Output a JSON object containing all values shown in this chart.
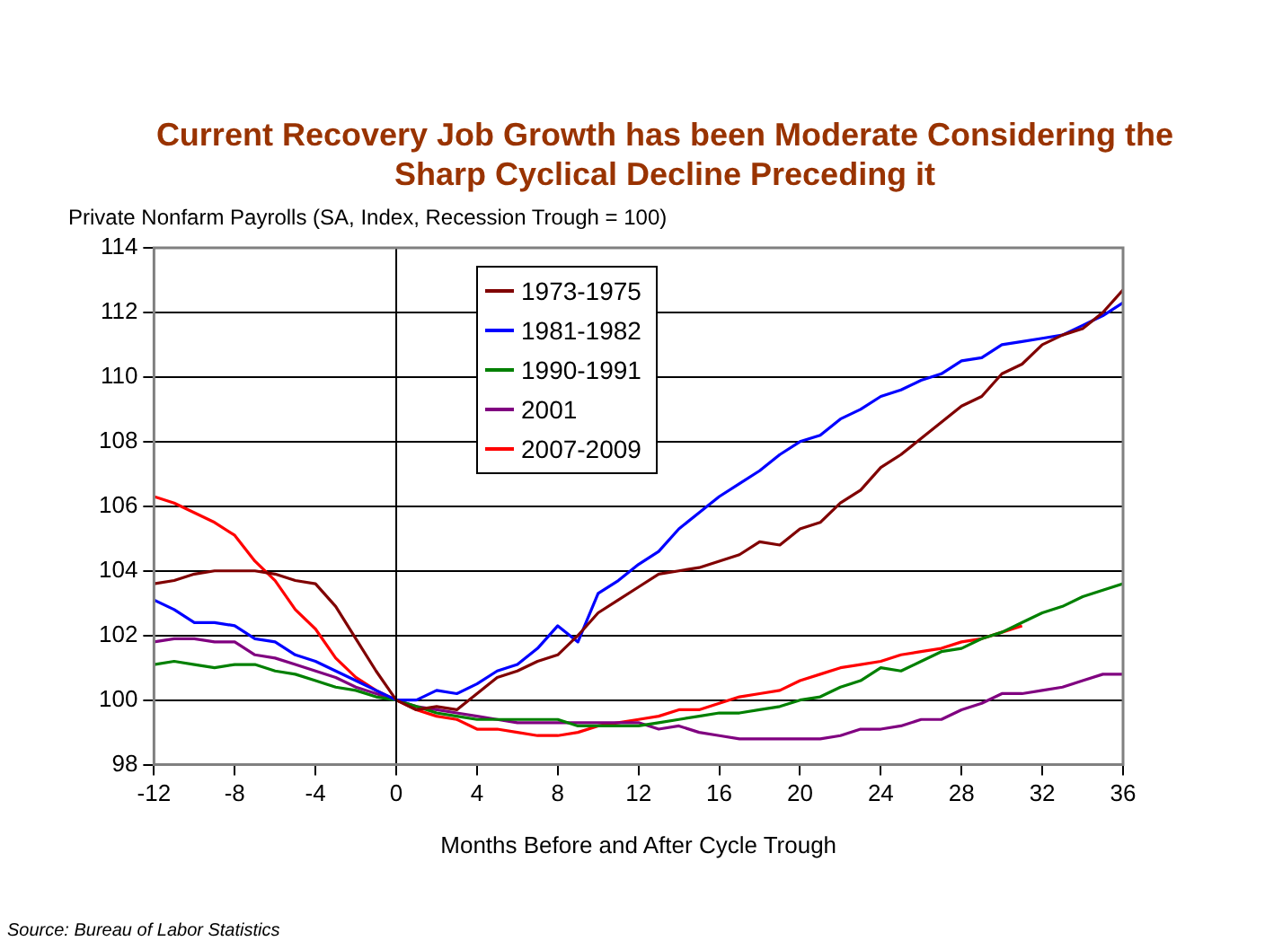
{
  "chart_data": {
    "type": "line",
    "title": "Current Recovery Job Growth has been Moderate Considering the Sharp Cyclical Decline Preceding it",
    "ylabel": "Private Nonfarm Payrolls (SA, Index, Recession Trough = 100)",
    "xlabel": "Months Before and After Cycle Trough",
    "annotations": [
      "Source: Bureau of Labor Statistics"
    ],
    "x": [
      -12,
      -11,
      -10,
      -9,
      -8,
      -7,
      -6,
      -5,
      -4,
      -3,
      -2,
      -1,
      0,
      1,
      2,
      3,
      4,
      5,
      6,
      7,
      8,
      9,
      10,
      11,
      12,
      13,
      14,
      15,
      16,
      17,
      18,
      19,
      20,
      21,
      22,
      23,
      24,
      25,
      26,
      27,
      28,
      29,
      30,
      31,
      32,
      33,
      34,
      35,
      36
    ],
    "series": [
      {
        "name": "1973-1975",
        "color": "#800000",
        "values": [
          103.6,
          103.7,
          103.9,
          104,
          104,
          104,
          103.9,
          103.7,
          103.6,
          102.9,
          101.9,
          100.9,
          100,
          99.7,
          99.8,
          99.7,
          100.2,
          100.7,
          100.9,
          101.2,
          101.4,
          102,
          102.7,
          103.1,
          103.5,
          103.9,
          104,
          104.1,
          104.3,
          104.5,
          104.9,
          104.8,
          105.3,
          105.5,
          106.1,
          106.5,
          107.2,
          107.6,
          108.1,
          108.6,
          109.1,
          109.4,
          110.1,
          110.4,
          111,
          111.3,
          111.5,
          112,
          112.7
        ]
      },
      {
        "name": "1981-1982",
        "color": "#0000ff",
        "values": [
          103.1,
          102.8,
          102.4,
          102.4,
          102.3,
          101.9,
          101.8,
          101.4,
          101.2,
          100.9,
          100.6,
          100.3,
          100,
          100,
          100.3,
          100.2,
          100.5,
          100.9,
          101.1,
          101.6,
          102.3,
          101.8,
          103.3,
          103.7,
          104.2,
          104.6,
          105.3,
          105.8,
          106.3,
          106.7,
          107.1,
          107.6,
          108,
          108.2,
          108.7,
          109,
          109.4,
          109.6,
          109.9,
          110.1,
          110.5,
          110.6,
          111,
          111.1,
          111.2,
          111.3,
          111.6,
          111.9,
          112.3
        ]
      },
      {
        "name": "1990-1991",
        "color": "#008000",
        "values": [
          101.1,
          101.2,
          101.1,
          101,
          101.1,
          101.1,
          100.9,
          100.8,
          100.6,
          100.4,
          100.3,
          100.1,
          100,
          99.8,
          99.6,
          99.5,
          99.4,
          99.4,
          99.4,
          99.4,
          99.4,
          99.2,
          99.2,
          99.2,
          99.2,
          99.3,
          99.4,
          99.5,
          99.6,
          99.6,
          99.7,
          99.8,
          100,
          100.1,
          100.4,
          100.6,
          101,
          100.9,
          101.2,
          101.5,
          101.6,
          101.9,
          102.1,
          102.4,
          102.7,
          102.9,
          103.2,
          103.4,
          103.6
        ]
      },
      {
        "name": "2001",
        "color": "#800080",
        "values": [
          101.8,
          101.9,
          101.9,
          101.8,
          101.8,
          101.4,
          101.3,
          101.1,
          100.9,
          100.7,
          100.4,
          100.2,
          100,
          99.8,
          99.7,
          99.6,
          99.5,
          99.4,
          99.3,
          99.3,
          99.3,
          99.3,
          99.3,
          99.3,
          99.3,
          99.1,
          99.2,
          99,
          98.9,
          98.8,
          98.8,
          98.8,
          98.8,
          98.8,
          98.9,
          99.1,
          99.1,
          99.2,
          99.4,
          99.4,
          99.7,
          99.9,
          100.2,
          100.2,
          100.3,
          100.4,
          100.6,
          100.8,
          100.8
        ]
      },
      {
        "name": "2007-2009",
        "color": "#ff0000",
        "values": [
          106.3,
          106.1,
          105.8,
          105.5,
          105.1,
          104.3,
          103.7,
          102.8,
          102.2,
          101.3,
          100.7,
          100.3,
          100,
          99.7,
          99.5,
          99.4,
          99.1,
          99.1,
          99,
          98.9,
          98.9,
          99,
          99.2,
          99.3,
          99.4,
          99.5,
          99.7,
          99.7,
          99.9,
          100.1,
          100.2,
          100.3,
          100.6,
          100.8,
          101,
          101.1,
          101.2,
          101.4,
          101.5,
          101.6,
          101.8,
          101.9,
          102.1,
          102.3,
          null,
          null,
          null,
          null,
          null
        ]
      }
    ],
    "xlim": [
      -12,
      36
    ],
    "xticks": [
      -12,
      -8,
      -4,
      0,
      4,
      8,
      12,
      16,
      20,
      24,
      28,
      32,
      36
    ],
    "ylim": [
      98,
      114
    ],
    "yticks": [
      98,
      100,
      102,
      104,
      106,
      108,
      110,
      112,
      114
    ],
    "ref_lines": [
      {
        "axis": "x",
        "value": 0,
        "color": "#000000"
      }
    ],
    "grid": "y",
    "legend": "top",
    "marker": "none",
    "line_style": "solid"
  }
}
